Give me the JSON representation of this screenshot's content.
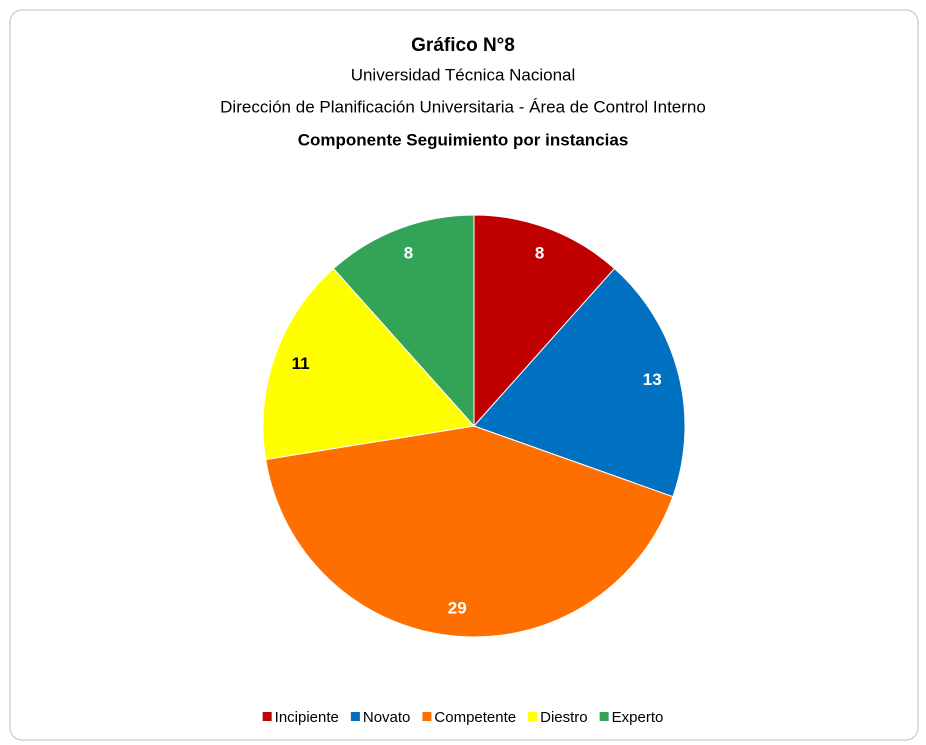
{
  "chart_data": {
    "type": "pie",
    "title": "Gráfico N°8",
    "subtitle": [
      "Universidad Técnica Nacional",
      "Dirección de Planificación Universitaria - Área de Control Interno",
      "Componente Seguimiento por instancias"
    ],
    "categories": [
      "Incipiente",
      "Novato",
      "Competente",
      "Diestro",
      "Experto"
    ],
    "values": [
      8,
      13,
      29,
      11,
      8
    ],
    "colors": [
      "#c00000",
      "#0070c0",
      "#ff6f00",
      "#ffff00",
      "#33a457"
    ],
    "legend": "bottom"
  }
}
